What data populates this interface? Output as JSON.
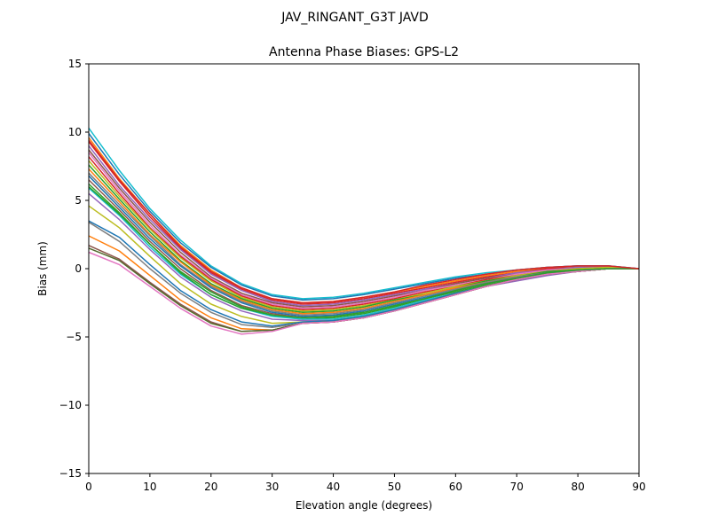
{
  "figure": {
    "suptitle": "JAV_RINGANT_G3T JAVD"
  },
  "chart_data": {
    "type": "line",
    "title": "Antenna Phase Biases: GPS-L2",
    "xlabel": "Elevation angle (degrees)",
    "ylabel": "Bias (mm)",
    "xlim": [
      0,
      90
    ],
    "ylim": [
      -15,
      15
    ],
    "xticks": [
      0,
      10,
      20,
      30,
      40,
      50,
      60,
      70,
      80,
      90
    ],
    "yticks": [
      -15,
      -10,
      -5,
      0,
      5,
      10,
      15
    ],
    "xtick_labels": [
      "0",
      "10",
      "20",
      "30",
      "40",
      "50",
      "60",
      "70",
      "80",
      "90"
    ],
    "ytick_labels": [
      "−15",
      "−10",
      "−5",
      "0",
      "5",
      "10",
      "15"
    ],
    "grid": false,
    "legend": "none",
    "x": [
      0,
      5,
      10,
      15,
      20,
      25,
      30,
      35,
      40,
      45,
      50,
      55,
      60,
      65,
      70,
      75,
      80,
      85,
      90
    ],
    "series": [
      {
        "color": "#17becf",
        "values": [
          10.3,
          7.2,
          4.4,
          2.1,
          0.2,
          -1.1,
          -1.9,
          -2.2,
          -2.1,
          -1.8,
          -1.4,
          -1.0,
          -0.6,
          -0.3,
          -0.1,
          0.1,
          0.2,
          0.2,
          0.0
        ]
      },
      {
        "color": "#1f77b4",
        "values": [
          9.9,
          6.9,
          4.2,
          1.9,
          0.1,
          -1.2,
          -2.0,
          -2.3,
          -2.2,
          -1.9,
          -1.5,
          -1.1,
          -0.7,
          -0.4,
          -0.1,
          0.1,
          0.2,
          0.2,
          0.0
        ]
      },
      {
        "color": "#ff7f0e",
        "values": [
          9.6,
          6.6,
          4.0,
          1.7,
          -0.1,
          -1.4,
          -2.2,
          -2.5,
          -2.4,
          -2.1,
          -1.7,
          -1.3,
          -0.9,
          -0.5,
          -0.2,
          0.0,
          0.1,
          0.1,
          0.0
        ]
      },
      {
        "color": "#d62728",
        "values": [
          9.3,
          6.4,
          3.8,
          1.5,
          -0.3,
          -1.5,
          -2.3,
          -2.6,
          -2.5,
          -2.2,
          -1.8,
          -1.4,
          -1.0,
          -0.6,
          -0.3,
          0.0,
          0.1,
          0.1,
          0.0
        ]
      },
      {
        "color": "#9467bd",
        "values": [
          9.0,
          6.1,
          3.6,
          1.4,
          -0.4,
          -1.6,
          -2.4,
          -2.7,
          -2.6,
          -2.3,
          -1.9,
          -1.5,
          -1.1,
          -0.7,
          -0.3,
          -0.1,
          0.1,
          0.1,
          0.0
        ]
      },
      {
        "color": "#8c564b",
        "values": [
          8.7,
          5.9,
          3.4,
          1.2,
          -0.6,
          -1.8,
          -2.5,
          -2.8,
          -2.7,
          -2.4,
          -2.0,
          -1.6,
          -1.1,
          -0.7,
          -0.4,
          -0.1,
          0.0,
          0.1,
          0.0
        ]
      },
      {
        "color": "#e377c2",
        "values": [
          8.5,
          5.7,
          3.2,
          1.0,
          -0.7,
          -1.9,
          -2.6,
          -2.9,
          -2.8,
          -2.5,
          -2.1,
          -1.6,
          -1.2,
          -0.8,
          -0.4,
          -0.1,
          0.0,
          0.1,
          0.0
        ]
      },
      {
        "color": "#d62728",
        "values": [
          8.2,
          5.5,
          3.0,
          0.9,
          -0.8,
          -2.0,
          -2.7,
          -3.0,
          -2.9,
          -2.6,
          -2.2,
          -1.7,
          -1.3,
          -0.8,
          -0.5,
          -0.2,
          0.0,
          0.1,
          0.0
        ]
      },
      {
        "color": "#bcbd22",
        "values": [
          7.9,
          5.3,
          2.9,
          0.8,
          -0.9,
          -2.1,
          -2.8,
          -3.1,
          -3.0,
          -2.7,
          -2.3,
          -1.8,
          -1.3,
          -0.9,
          -0.5,
          -0.2,
          0.0,
          0.1,
          0.0
        ]
      },
      {
        "color": "#2ca02c",
        "values": [
          7.6,
          5.1,
          2.7,
          0.6,
          -1.1,
          -2.2,
          -2.9,
          -3.2,
          -3.1,
          -2.8,
          -2.3,
          -1.9,
          -1.4,
          -0.9,
          -0.6,
          -0.2,
          -0.1,
          0.0,
          0.0
        ]
      },
      {
        "color": "#ff7f0e",
        "values": [
          7.3,
          4.9,
          2.5,
          0.5,
          -1.2,
          -2.3,
          -3.0,
          -3.3,
          -3.2,
          -2.9,
          -2.4,
          -1.9,
          -1.4,
          -1.0,
          -0.6,
          -0.3,
          -0.1,
          0.0,
          0.0
        ]
      },
      {
        "color": "#7f7f7f",
        "values": [
          7.0,
          4.7,
          2.4,
          0.3,
          -1.3,
          -2.4,
          -3.1,
          -3.4,
          -3.3,
          -3.0,
          -2.5,
          -2.0,
          -1.5,
          -1.0,
          -0.6,
          -0.3,
          -0.1,
          0.0,
          0.0
        ]
      },
      {
        "color": "#1f77b4",
        "values": [
          6.8,
          4.5,
          2.2,
          0.2,
          -1.4,
          -2.5,
          -3.2,
          -3.5,
          -3.4,
          -3.1,
          -2.6,
          -2.1,
          -1.6,
          -1.1,
          -0.7,
          -0.3,
          -0.1,
          0.0,
          0.0
        ]
      },
      {
        "color": "#8c564b",
        "values": [
          6.5,
          4.3,
          2.0,
          0.0,
          -1.6,
          -2.7,
          -3.3,
          -3.6,
          -3.5,
          -3.2,
          -2.7,
          -2.2,
          -1.6,
          -1.1,
          -0.7,
          -0.4,
          -0.2,
          0.0,
          0.0
        ]
      },
      {
        "color": "#2ca02c",
        "values": [
          6.2,
          4.1,
          1.8,
          -0.2,
          -1.7,
          -2.8,
          -3.4,
          -3.7,
          -3.6,
          -3.3,
          -2.8,
          -2.2,
          -1.7,
          -1.2,
          -0.8,
          -0.4,
          -0.2,
          0.0,
          0.0
        ]
      },
      {
        "color": "#17becf",
        "values": [
          5.9,
          3.9,
          1.6,
          -0.4,
          -1.9,
          -2.9,
          -3.5,
          -3.7,
          -3.7,
          -3.4,
          -2.9,
          -2.3,
          -1.8,
          -1.3,
          -0.8,
          -0.4,
          -0.2,
          0.0,
          0.0
        ]
      },
      {
        "color": "#9467bd",
        "values": [
          5.5,
          3.6,
          1.4,
          -0.6,
          -2.1,
          -3.1,
          -3.7,
          -3.8,
          -3.8,
          -3.5,
          -3.0,
          -2.4,
          -1.9,
          -1.3,
          -0.9,
          -0.5,
          -0.2,
          0.0,
          0.0
        ]
      },
      {
        "color": "#bcbd22",
        "values": [
          4.6,
          3.0,
          0.9,
          -1.1,
          -2.6,
          -3.5,
          -4.0,
          -3.9,
          -3.8,
          -3.5,
          -3.0,
          -2.4,
          -1.8,
          -1.3,
          -0.8,
          -0.4,
          -0.2,
          0.0,
          0.0
        ]
      },
      {
        "color": "#1f77b4",
        "values": [
          3.5,
          2.3,
          0.3,
          -1.6,
          -3.0,
          -3.9,
          -4.2,
          -3.9,
          -3.8,
          -3.5,
          -3.0,
          -2.4,
          -1.8,
          -1.3,
          -0.8,
          -0.4,
          -0.2,
          0.0,
          0.0
        ]
      },
      {
        "color": "#7f7f7f",
        "values": [
          3.4,
          2.0,
          0.0,
          -1.8,
          -3.2,
          -4.1,
          -4.3,
          -4.0,
          -3.9,
          -3.6,
          -3.1,
          -2.5,
          -1.9,
          -1.3,
          -0.8,
          -0.4,
          -0.2,
          0.0,
          0.0
        ]
      },
      {
        "color": "#ff7f0e",
        "values": [
          2.4,
          1.3,
          -0.5,
          -2.3,
          -3.6,
          -4.4,
          -4.5,
          -4.0,
          -3.9,
          -3.6,
          -3.1,
          -2.5,
          -1.9,
          -1.3,
          -0.8,
          -0.4,
          -0.2,
          0.0,
          0.0
        ]
      },
      {
        "color": "#8c564b",
        "values": [
          1.7,
          0.7,
          -1.0,
          -2.6,
          -3.9,
          -4.6,
          -4.5,
          -4.0,
          -3.9,
          -3.6,
          -3.1,
          -2.5,
          -1.9,
          -1.3,
          -0.8,
          -0.4,
          -0.2,
          0.0,
          0.0
        ]
      },
      {
        "color": "#556b2f",
        "values": [
          1.5,
          0.6,
          -1.1,
          -2.7,
          -4.0,
          -4.6,
          -4.5,
          -4.0,
          -3.9,
          -3.6,
          -3.1,
          -2.5,
          -1.9,
          -1.3,
          -0.8,
          -0.4,
          -0.2,
          0.0,
          0.0
        ]
      },
      {
        "color": "#e377c2",
        "values": [
          1.2,
          0.3,
          -1.3,
          -2.9,
          -4.2,
          -4.8,
          -4.6,
          -4.0,
          -3.9,
          -3.6,
          -3.1,
          -2.5,
          -1.9,
          -1.3,
          -0.8,
          -0.4,
          -0.2,
          0.0,
          0.0
        ]
      },
      {
        "color": "#2ca02c",
        "values": [
          6.0,
          4.0,
          1.8,
          -0.3,
          -1.9,
          -2.9,
          -3.4,
          -3.6,
          -3.5,
          -3.2,
          -2.7,
          -2.2,
          -1.6,
          -1.1,
          -0.7,
          -0.3,
          -0.1,
          0.0,
          0.0
        ]
      },
      {
        "color": "#d62728",
        "values": [
          9.4,
          6.5,
          4.0,
          1.6,
          -0.2,
          -1.4,
          -2.2,
          -2.5,
          -2.4,
          -2.1,
          -1.7,
          -1.2,
          -0.8,
          -0.4,
          -0.1,
          0.1,
          0.2,
          0.2,
          0.0
        ]
      }
    ]
  }
}
